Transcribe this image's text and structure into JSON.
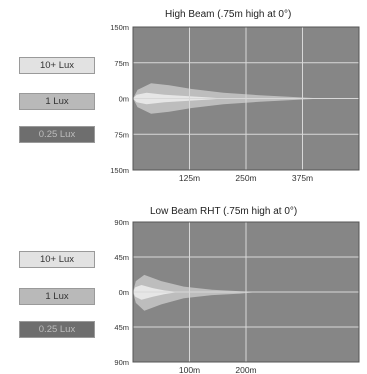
{
  "chart_data": [
    {
      "type": "area",
      "title": "High Beam (.75m high at 0°)",
      "xlabel": "",
      "ylabel": "",
      "xlim": [
        0,
        500
      ],
      "ylim": [
        -150,
        150
      ],
      "x_ticks": [
        {
          "value": 125,
          "label": "125m"
        },
        {
          "value": 250,
          "label": "250m"
        },
        {
          "value": 375,
          "label": "375m"
        }
      ],
      "y_ticks": [
        {
          "value": 150,
          "label": "150m"
        },
        {
          "value": 75,
          "label": "75m"
        },
        {
          "value": 0,
          "label": "0m"
        },
        {
          "value": -75,
          "label": "75m"
        },
        {
          "value": -150,
          "label": "150m"
        }
      ],
      "grid": true,
      "legend": [
        "10+ Lux",
        "1 Lux",
        "0.25 Lux"
      ],
      "series": [
        {
          "name": "0.25 Lux",
          "color": "#868686",
          "x": [
            0,
            500
          ],
          "upper": [
            0,
            0
          ],
          "lower": [
            0,
            0
          ]
        },
        {
          "name": "1 Lux",
          "color": "#bdbdbd",
          "x": [
            0,
            10,
            40,
            80,
            130,
            200,
            280,
            360,
            420
          ],
          "upper": [
            0,
            18,
            32,
            28,
            20,
            12,
            7,
            3,
            0
          ],
          "lower": [
            0,
            -18,
            -32,
            -28,
            -20,
            -12,
            -7,
            -3,
            0
          ]
        },
        {
          "name": "10+ Lux",
          "color": "#e6e6e6",
          "x": [
            0,
            8,
            30,
            70,
            120,
            170,
            200
          ],
          "upper": [
            0,
            8,
            12,
            8,
            5,
            2,
            0
          ],
          "lower": [
            0,
            -8,
            -12,
            -8,
            -5,
            -2,
            0
          ]
        }
      ]
    },
    {
      "type": "area",
      "title": "Low Beam RHT (.75m high at 0°)",
      "xlabel": "",
      "ylabel": "",
      "xlim": [
        0,
        400
      ],
      "ylim": [
        -90,
        90
      ],
      "x_ticks": [
        {
          "value": 100,
          "label": "100m"
        },
        {
          "value": 200,
          "label": "200m"
        }
      ],
      "y_ticks": [
        {
          "value": 90,
          "label": "90m"
        },
        {
          "value": 45,
          "label": "45m"
        },
        {
          "value": 0,
          "label": "0m"
        },
        {
          "value": -45,
          "label": "45m"
        },
        {
          "value": -90,
          "label": "90m"
        }
      ],
      "grid": true,
      "legend": [
        "10+ Lux",
        "1 Lux",
        "0.25 Lux"
      ],
      "series": [
        {
          "name": "0.25 Lux",
          "color": "#868686",
          "x": [
            0,
            400
          ],
          "upper": [
            0,
            0
          ],
          "lower": [
            0,
            0
          ]
        },
        {
          "name": "1 Lux",
          "color": "#bdbdbd",
          "x": [
            0,
            5,
            20,
            50,
            90,
            140,
            190,
            220
          ],
          "upper": [
            0,
            14,
            22,
            14,
            7,
            3,
            1,
            0
          ],
          "lower": [
            0,
            -14,
            -24,
            -16,
            -8,
            -4,
            -2,
            0
          ]
        },
        {
          "name": "10+ Lux",
          "color": "#e6e6e6",
          "x": [
            0,
            4,
            15,
            35,
            55,
            80
          ],
          "upper": [
            0,
            6,
            9,
            5,
            2,
            0
          ],
          "lower": [
            0,
            -6,
            -10,
            -6,
            -3,
            0
          ]
        }
      ]
    }
  ]
}
